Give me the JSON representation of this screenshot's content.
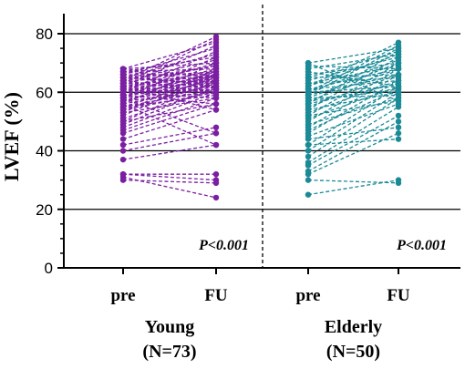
{
  "chart_data": {
    "type": "line",
    "subtype": "paired-dot (before-after) plot",
    "ylabel": "LVEF (%)",
    "ylim": [
      0,
      80
    ],
    "yticks": [
      0,
      20,
      40,
      60,
      80
    ],
    "grid": "horizontal at 20, 40, 60, 80",
    "separator": "dashed vertical line between groups",
    "groups": [
      {
        "id": "young",
        "label_line1": "Young",
        "label_line2": "(N=73)",
        "color": "#7B1FA2",
        "categories": [
          "pre",
          "FU"
        ],
        "p_value": "P<0.001",
        "pairs": [
          [
            30,
            29
          ],
          [
            31,
            24
          ],
          [
            32,
            32
          ],
          [
            32,
            30
          ],
          [
            37,
            42
          ],
          [
            40,
            46
          ],
          [
            42,
            48
          ],
          [
            44,
            54
          ],
          [
            46,
            56
          ],
          [
            47,
            58
          ],
          [
            48,
            60
          ],
          [
            49,
            62
          ],
          [
            50,
            56
          ],
          [
            50,
            64
          ],
          [
            51,
            61
          ],
          [
            52,
            66
          ],
          [
            53,
            58
          ],
          [
            53,
            68
          ],
          [
            54,
            60
          ],
          [
            54,
            63
          ],
          [
            55,
            59
          ],
          [
            55,
            65
          ],
          [
            56,
            62
          ],
          [
            56,
            70
          ],
          [
            57,
            60
          ],
          [
            57,
            64
          ],
          [
            57,
            66
          ],
          [
            58,
            61
          ],
          [
            58,
            67
          ],
          [
            58,
            72
          ],
          [
            59,
            56
          ],
          [
            59,
            62
          ],
          [
            59,
            63
          ],
          [
            60,
            58
          ],
          [
            60,
            61
          ],
          [
            60,
            64
          ],
          [
            60,
            68
          ],
          [
            60,
            74
          ],
          [
            61,
            60
          ],
          [
            61,
            62
          ],
          [
            61,
            65
          ],
          [
            61,
            70
          ],
          [
            62,
            54
          ],
          [
            62,
            63
          ],
          [
            62,
            66
          ],
          [
            62,
            76
          ],
          [
            63,
            62
          ],
          [
            63,
            64
          ],
          [
            63,
            69
          ],
          [
            63,
            78
          ],
          [
            64,
            60
          ],
          [
            64,
            65
          ],
          [
            64,
            71
          ],
          [
            64,
            79
          ],
          [
            65,
            63
          ],
          [
            65,
            67
          ],
          [
            65,
            73
          ],
          [
            66,
            62
          ],
          [
            66,
            66
          ],
          [
            66,
            75
          ],
          [
            67,
            64
          ],
          [
            67,
            68
          ],
          [
            67,
            72
          ],
          [
            68,
            65
          ],
          [
            68,
            70
          ],
          [
            68,
            77
          ],
          [
            58,
            46
          ],
          [
            56,
            42
          ],
          [
            62,
            67
          ],
          [
            60,
            66
          ],
          [
            55,
            61
          ],
          [
            64,
            69
          ],
          [
            59,
            65
          ]
        ]
      },
      {
        "id": "elderly",
        "label_line1": "Elderly",
        "label_line2": "(N=50)",
        "color": "#1A8A96",
        "categories": [
          "pre",
          "FU"
        ],
        "p_value": "P<0.001",
        "pairs": [
          [
            25,
            30
          ],
          [
            30,
            29
          ],
          [
            32,
            46
          ],
          [
            33,
            50
          ],
          [
            35,
            52
          ],
          [
            36,
            55
          ],
          [
            38,
            58
          ],
          [
            40,
            60
          ],
          [
            42,
            44
          ],
          [
            42,
            62
          ],
          [
            44,
            48
          ],
          [
            45,
            56
          ],
          [
            46,
            64
          ],
          [
            47,
            61
          ],
          [
            48,
            66
          ],
          [
            49,
            58
          ],
          [
            50,
            68
          ],
          [
            51,
            62
          ],
          [
            52,
            57
          ],
          [
            52,
            70
          ],
          [
            53,
            64
          ],
          [
            54,
            60
          ],
          [
            54,
            72
          ],
          [
            55,
            66
          ],
          [
            56,
            63
          ],
          [
            56,
            74
          ],
          [
            57,
            68
          ],
          [
            57,
            61
          ],
          [
            58,
            70
          ],
          [
            58,
            59
          ],
          [
            59,
            66
          ],
          [
            59,
            75
          ],
          [
            60,
            62
          ],
          [
            60,
            71
          ],
          [
            60,
            76
          ],
          [
            61,
            64
          ],
          [
            61,
            68
          ],
          [
            62,
            73
          ],
          [
            62,
            77
          ],
          [
            63,
            65
          ],
          [
            63,
            69
          ],
          [
            64,
            72
          ],
          [
            65,
            66
          ],
          [
            65,
            74
          ],
          [
            66,
            70
          ],
          [
            67,
            62
          ],
          [
            68,
            73
          ],
          [
            69,
            68
          ],
          [
            70,
            75
          ],
          [
            70,
            57
          ]
        ]
      }
    ]
  }
}
